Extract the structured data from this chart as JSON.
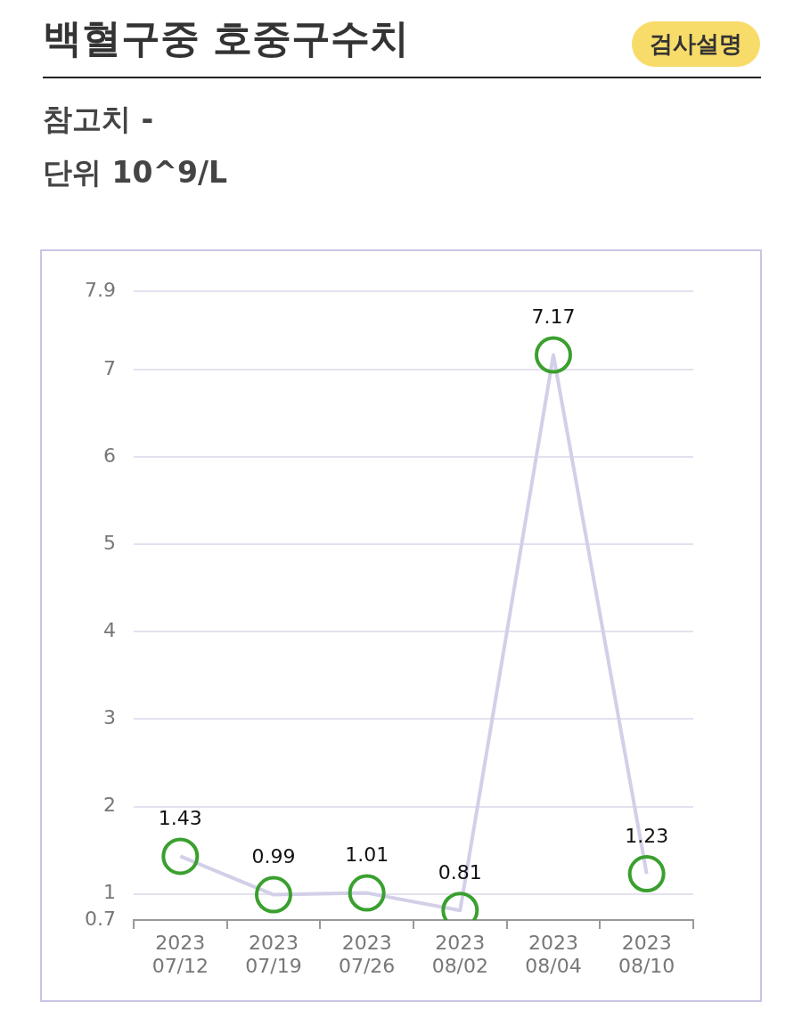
{
  "chart_data": {
    "type": "line",
    "title": "백혈구중 호중구수치",
    "subtitle": "참고치 -\n단위 10^9/L",
    "annotations": [
      "검사설명"
    ],
    "categories": [
      "2023\n07/12",
      "2023\n07/19",
      "2023\n07/26",
      "2023\n08/02",
      "2023\n08/04",
      "2023\n08/10"
    ],
    "series": [
      {
        "color": "#d2cfe8",
        "values": [
          1.43,
          0.99,
          1.01,
          0.81,
          7.17,
          1.23
        ]
      }
    ],
    "ylim": [
      0.7,
      7.9
    ],
    "yticks": [
      0.7,
      1,
      2,
      3,
      4,
      5,
      6,
      7,
      7.9
    ],
    "grid": "y",
    "legend": false,
    "marker": "circle",
    "line_style": "solid",
    "data_labels": true
  }
}
